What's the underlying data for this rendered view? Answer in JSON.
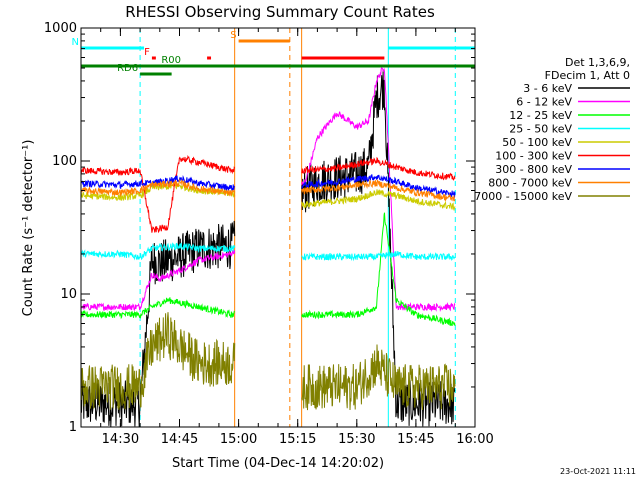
{
  "chart_data": {
    "type": "line",
    "title": "RHESSI Observing Summary Count Rates",
    "xlabel": "Start Time (04-Dec-14 14:20:02)",
    "ylabel": "Count Rate (s⁻¹ detector⁻¹)",
    "yscale": "log",
    "xlim": [
      "14:20",
      "16:00"
    ],
    "ylim": [
      1,
      1000
    ],
    "x_ticks": [
      "14:30",
      "14:45",
      "15:00",
      "15:15",
      "15:30",
      "15:45",
      "16:00"
    ],
    "y_ticks": [
      {
        "value": 1,
        "label": "1"
      },
      {
        "value": 10,
        "label": "10"
      },
      {
        "value": 100,
        "label": "100"
      },
      {
        "value": 1000,
        "label": "1000"
      }
    ],
    "legend_header": [
      "Det 1,3,6,9,",
      "FDecim 1, Att 0"
    ],
    "legend_position": "right",
    "timestamp": "23-Oct-2021 11:11",
    "series": [
      {
        "name": "3 - 6 keV",
        "color": "#000000",
        "x": [
          "14:20",
          "14:30",
          "14:35",
          "14:38",
          "14:40",
          "14:45",
          "14:50",
          "14:58",
          "15:17",
          "15:20",
          "15:25",
          "15:30",
          "15:33",
          "15:35",
          "15:37",
          "15:40",
          "15:45",
          "15:50",
          "15:55"
        ],
        "y": [
          1.5,
          1.5,
          1.5,
          18,
          17,
          19,
          22,
          23,
          60,
          70,
          75,
          80,
          90,
          300,
          380,
          1.5,
          1.5,
          1.5,
          1.5
        ]
      },
      {
        "name": "6 - 12 keV",
        "color": "#ff00ff",
        "x": [
          "14:20",
          "14:30",
          "14:35",
          "14:38",
          "14:40",
          "14:45",
          "14:50",
          "14:58",
          "15:17",
          "15:20",
          "15:25",
          "15:30",
          "15:33",
          "15:35",
          "15:37",
          "15:40",
          "15:45",
          "15:50",
          "15:55"
        ],
        "y": [
          8,
          8,
          8,
          14,
          13,
          15,
          18,
          20,
          70,
          150,
          230,
          180,
          200,
          400,
          520,
          8,
          8,
          8,
          8
        ]
      },
      {
        "name": "12 - 25 keV",
        "color": "#00ff00",
        "x": [
          "14:20",
          "14:30",
          "14:35",
          "14:38",
          "14:42",
          "14:50",
          "14:58",
          "15:17",
          "15:25",
          "15:30",
          "15:35",
          "15:37",
          "15:40",
          "15:45",
          "15:55"
        ],
        "y": [
          7,
          7,
          7,
          8,
          9,
          8,
          7,
          7,
          7,
          7,
          8,
          40,
          9,
          7,
          6
        ]
      },
      {
        "name": "25 - 50 keV",
        "color": "#00ffff",
        "x": [
          "14:20",
          "14:30",
          "14:35",
          "14:38",
          "14:45",
          "14:50",
          "14:58",
          "15:17",
          "15:25",
          "15:30",
          "15:35",
          "15:40",
          "15:45",
          "15:55"
        ],
        "y": [
          20,
          20,
          19,
          22,
          23,
          22,
          22,
          19,
          19,
          19,
          19,
          20,
          19,
          19
        ]
      },
      {
        "name": "50 - 100 keV",
        "color": "#cccc00",
        "x": [
          "14:20",
          "14:30",
          "14:35",
          "14:38",
          "14:45",
          "14:50",
          "14:58",
          "15:17",
          "15:25",
          "15:30",
          "15:35",
          "15:40",
          "15:45",
          "15:55"
        ],
        "y": [
          55,
          53,
          55,
          63,
          65,
          60,
          57,
          47,
          50,
          52,
          58,
          55,
          50,
          45
        ]
      },
      {
        "name": "100 - 300 keV",
        "color": "#ff0000",
        "x": [
          "14:20",
          "14:30",
          "14:35",
          "14:38",
          "14:42",
          "14:45",
          "14:50",
          "14:58",
          "15:17",
          "15:25",
          "15:30",
          "15:35",
          "15:40",
          "15:45",
          "15:55"
        ],
        "y": [
          85,
          82,
          85,
          30,
          32,
          105,
          98,
          85,
          85,
          88,
          95,
          100,
          90,
          82,
          75
        ]
      },
      {
        "name": "300 - 800 keV",
        "color": "#0000ff",
        "x": [
          "14:20",
          "14:30",
          "14:35",
          "14:38",
          "14:45",
          "14:50",
          "14:58",
          "15:17",
          "15:25",
          "15:30",
          "15:35",
          "15:40",
          "15:45",
          "15:55"
        ],
        "y": [
          68,
          66,
          68,
          68,
          74,
          68,
          63,
          66,
          70,
          73,
          76,
          70,
          63,
          56
        ]
      },
      {
        "name": "800 - 7000 keV",
        "color": "#ff8000",
        "x": [
          "14:20",
          "14:30",
          "14:35",
          "14:38",
          "14:45",
          "14:50",
          "14:58",
          "15:17",
          "15:25",
          "15:30",
          "15:35",
          "15:40",
          "15:45",
          "15:55"
        ],
        "y": [
          60,
          58,
          60,
          66,
          68,
          62,
          57,
          60,
          63,
          66,
          68,
          63,
          58,
          52
        ]
      },
      {
        "name": "7000 - 15000 keV",
        "color": "#808000",
        "x": [
          "14:20",
          "14:30",
          "14:35",
          "14:38",
          "14:42",
          "14:45",
          "14:50",
          "14:55",
          "14:58",
          "15:17",
          "15:25",
          "15:30",
          "15:35",
          "15:40",
          "15:45",
          "15:55"
        ],
        "y": [
          2,
          2,
          2,
          4,
          5,
          4,
          3,
          3,
          3,
          2,
          2,
          2,
          3,
          2,
          2,
          2
        ]
      }
    ],
    "flag_bars": [
      {
        "label": "N",
        "color": "#00ffff",
        "segments": [
          [
            "14:20",
            "14:36"
          ],
          [
            "15:38",
            "16:00"
          ]
        ]
      },
      {
        "label": "F",
        "color": "#ff0000",
        "segments": [
          [
            "14:38",
            "14:39"
          ]
        ]
      },
      {
        "label": "R00",
        "color": "#008000",
        "segments": [
          [
            "14:20",
            "16:00"
          ]
        ]
      },
      {
        "label": "RD6",
        "color": "#008000",
        "segments": [
          [
            "14:35",
            "14:43"
          ]
        ]
      },
      {
        "label": "S",
        "color": "#ff8000",
        "segments": [
          [
            "15:00",
            "15:13"
          ]
        ]
      },
      {
        "label": "",
        "color": "#ff0000",
        "segments": [
          [
            "14:52",
            "14:53"
          ],
          [
            "15:16",
            "15:37"
          ]
        ]
      }
    ],
    "vertical_markers": [
      {
        "time": "14:35",
        "color": "#00ffff",
        "style": "dashed"
      },
      {
        "time": "14:59",
        "color": "#ff8000",
        "style": "solid"
      },
      {
        "time": "15:13",
        "color": "#ff8000",
        "style": "dashed"
      },
      {
        "time": "15:16",
        "color": "#ff8000",
        "style": "solid"
      },
      {
        "time": "15:38",
        "color": "#00ffff",
        "style": "solid"
      },
      {
        "time": "15:55",
        "color": "#00ffff",
        "style": "dashed"
      }
    ],
    "gaps": [
      [
        "14:59",
        "15:16"
      ]
    ]
  }
}
